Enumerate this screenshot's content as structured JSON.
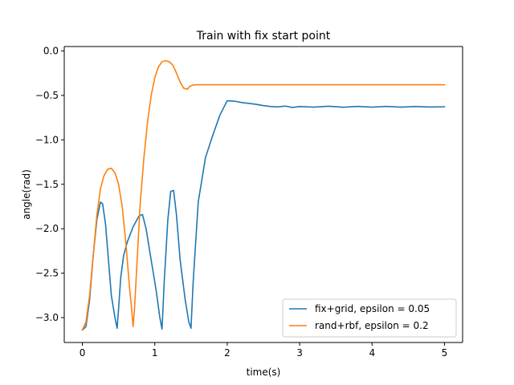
{
  "chart_data": {
    "type": "line",
    "title": "Train with fix start point",
    "xlabel": "time(s)",
    "ylabel": "angle(rad)",
    "xlim": [
      -0.25,
      5.25
    ],
    "ylim": [
      -3.28,
      0.05
    ],
    "xticks": [
      0,
      1,
      2,
      3,
      4,
      5
    ],
    "xtick_labels": [
      "0",
      "1",
      "2",
      "3",
      "4",
      "5"
    ],
    "yticks": [
      0.0,
      -0.5,
      -1.0,
      -1.5,
      -2.0,
      -2.5,
      -3.0
    ],
    "ytick_labels": [
      "0.0",
      "−0.5",
      "−1.0",
      "−1.5",
      "−2.0",
      "−2.5",
      "−3.0"
    ],
    "grid": false,
    "legend_position": "lower-right",
    "series": [
      {
        "name": "fix+grid, epsilon = 0.05",
        "color": "#1f77b4",
        "x": [
          0,
          0.05,
          0.1,
          0.15,
          0.2,
          0.25,
          0.28,
          0.32,
          0.36,
          0.4,
          0.45,
          0.48,
          0.5,
          0.53,
          0.57,
          0.62,
          0.7,
          0.78,
          0.83,
          0.88,
          0.95,
          1.02,
          1.07,
          1.1,
          1.13,
          1.18,
          1.22,
          1.26,
          1.3,
          1.35,
          1.42,
          1.47,
          1.5,
          1.53,
          1.6,
          1.7,
          1.8,
          1.9,
          2.0,
          2.1,
          2.2,
          2.3,
          2.4,
          2.5,
          2.6,
          2.7,
          2.8,
          2.9,
          3.0,
          3.2,
          3.4,
          3.6,
          3.8,
          4.0,
          4.2,
          4.4,
          4.6,
          4.8,
          5.0
        ],
        "values": [
          -3.14,
          -3.1,
          -2.8,
          -2.3,
          -1.9,
          -1.7,
          -1.72,
          -1.95,
          -2.35,
          -2.75,
          -3.0,
          -3.12,
          -2.9,
          -2.55,
          -2.3,
          -2.15,
          -1.98,
          -1.86,
          -1.84,
          -2.0,
          -2.35,
          -2.7,
          -3.0,
          -3.13,
          -2.6,
          -1.9,
          -1.58,
          -1.57,
          -1.85,
          -2.35,
          -2.8,
          -3.05,
          -3.12,
          -2.6,
          -1.7,
          -1.2,
          -0.95,
          -0.72,
          -0.56,
          -0.565,
          -0.58,
          -0.59,
          -0.6,
          -0.615,
          -0.625,
          -0.63,
          -0.62,
          -0.635,
          -0.625,
          -0.632,
          -0.622,
          -0.633,
          -0.624,
          -0.632,
          -0.624,
          -0.632,
          -0.625,
          -0.631,
          -0.628
        ]
      },
      {
        "name": "rand+rbf, epsilon = 0.2",
        "color": "#ff7f0e",
        "x": [
          0,
          0.05,
          0.1,
          0.15,
          0.2,
          0.25,
          0.3,
          0.35,
          0.4,
          0.45,
          0.5,
          0.55,
          0.6,
          0.65,
          0.68,
          0.7,
          0.72,
          0.76,
          0.8,
          0.85,
          0.9,
          0.95,
          1.0,
          1.05,
          1.1,
          1.15,
          1.2,
          1.25,
          1.3,
          1.35,
          1.4,
          1.45,
          1.48,
          1.52,
          1.56,
          1.6,
          1.7,
          1.8,
          2.0,
          2.5,
          3.0,
          3.5,
          4.0,
          4.5,
          5.0
        ],
        "values": [
          -3.14,
          -3.05,
          -2.75,
          -2.3,
          -1.85,
          -1.55,
          -1.4,
          -1.33,
          -1.32,
          -1.37,
          -1.5,
          -1.75,
          -2.15,
          -2.65,
          -2.9,
          -3.1,
          -2.9,
          -2.3,
          -1.7,
          -1.2,
          -0.8,
          -0.5,
          -0.3,
          -0.18,
          -0.12,
          -0.11,
          -0.12,
          -0.16,
          -0.25,
          -0.35,
          -0.42,
          -0.43,
          -0.4,
          -0.385,
          -0.38,
          -0.38,
          -0.38,
          -0.38,
          -0.38,
          -0.38,
          -0.38,
          -0.38,
          -0.38,
          -0.38,
          -0.38
        ]
      }
    ]
  }
}
